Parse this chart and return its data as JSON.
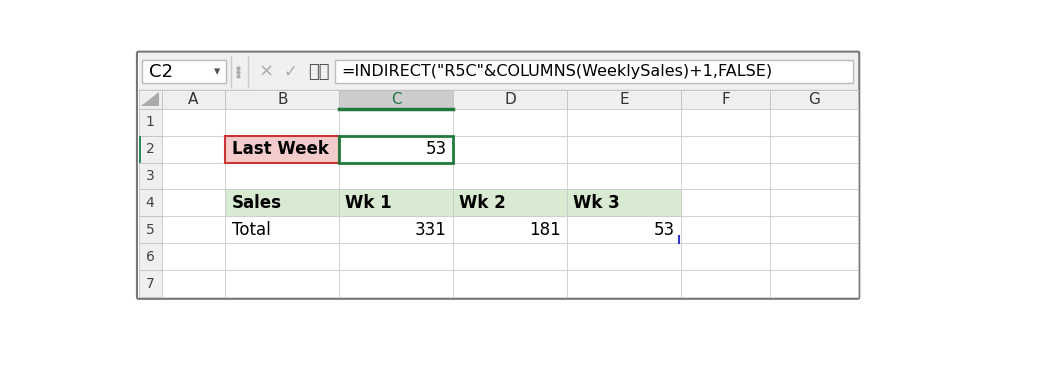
{
  "formula_bar_cell": "C2",
  "formula_bar_formula": "=INDIRECT(\"R5C\"&COLUMNS(WeeklySales)+1,FALSE)",
  "col_headers": [
    "A",
    "B",
    "C",
    "D",
    "E",
    "F",
    "G"
  ],
  "row_headers": [
    "1",
    "2",
    "3",
    "4",
    "5",
    "6",
    "7"
  ],
  "cells": {
    "B2": {
      "text": "Last Week",
      "bold": true,
      "bg": "#F4CCCC",
      "align": "left"
    },
    "C2": {
      "text": "53",
      "bold": false,
      "bg": "#FFFFFF",
      "align": "right"
    },
    "B4": {
      "text": "Sales",
      "bold": true,
      "bg": "#D9EAD3",
      "align": "left"
    },
    "C4": {
      "text": "Wk 1",
      "bold": true,
      "bg": "#D9EAD3",
      "align": "left"
    },
    "D4": {
      "text": "Wk 2",
      "bold": true,
      "bg": "#D9EAD3",
      "align": "left"
    },
    "E4": {
      "text": "Wk 3",
      "bold": true,
      "bg": "#D9EAD3",
      "align": "left"
    },
    "B5": {
      "text": "Total",
      "bold": false,
      "bg": "#FFFFFF",
      "align": "left"
    },
    "C5": {
      "text": "331",
      "bold": false,
      "bg": "#FFFFFF",
      "align": "right"
    },
    "D5": {
      "text": "181",
      "bold": false,
      "bg": "#FFFFFF",
      "align": "right"
    },
    "E5": {
      "text": "53",
      "bold": false,
      "bg": "#FFFFFF",
      "align": "right"
    }
  },
  "selected_col": "C",
  "selected_col_header_bg": "#CCCCCC",
  "selected_col_header_color": "#207A45",
  "grid_color": "#D0D0D0",
  "header_bg": "#EFEFEF",
  "header_border": "#BBBBBB",
  "cell_border_color": "#C8C8C8",
  "background_color": "#FFFFFF",
  "toolbar_bg": "#F0F0F0",
  "outer_border_color": "#777777",
  "green_border_color": "#1F7A3C",
  "pink_cell_border": "#CC3333",
  "blue_cursor_color": "#3333CC",
  "row2_highlight_left": "#2E8B57"
}
